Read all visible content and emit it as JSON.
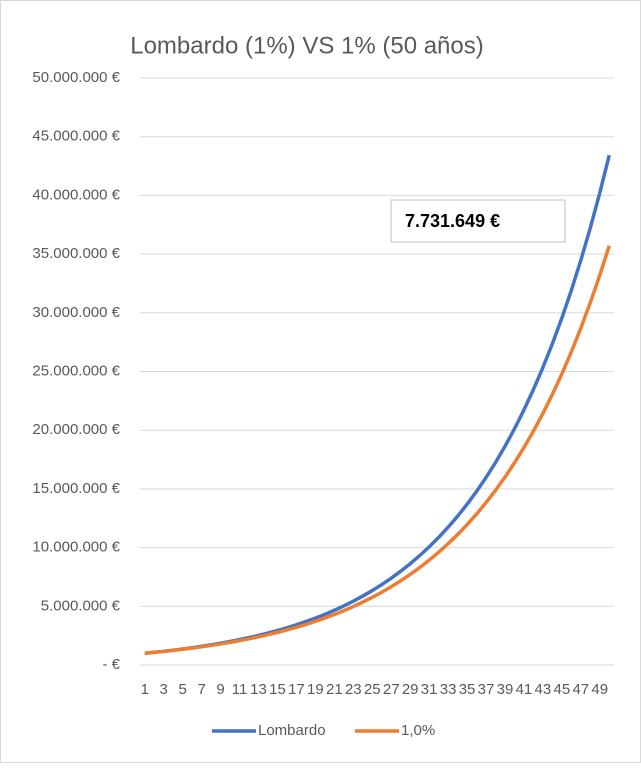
{
  "chart_data": {
    "type": "line",
    "title": "Lombardo (1%) VS 1% (50 años)",
    "annotation": "7.731.649 €",
    "categories": [
      "1",
      null,
      "3",
      null,
      "5",
      null,
      "7",
      null,
      "9",
      null,
      "11",
      null,
      "13",
      null,
      "15",
      null,
      "17",
      null,
      "19",
      null,
      "21",
      null,
      "23",
      null,
      "25",
      null,
      "27",
      null,
      "29",
      null,
      "31",
      null,
      "33",
      null,
      "35",
      null,
      "37",
      null,
      "39",
      null,
      "41",
      null,
      "43",
      null,
      "45",
      null,
      "47",
      null,
      "49",
      null
    ],
    "ylim": [
      0,
      50000000
    ],
    "yticks": [
      {
        "value": 0,
        "label": "-   €"
      },
      {
        "value": 5000000,
        "label": "5.000.000 €"
      },
      {
        "value": 10000000,
        "label": "10.000.000 €"
      },
      {
        "value": 15000000,
        "label": "15.000.000 €"
      },
      {
        "value": 20000000,
        "label": "20.000.000 €"
      },
      {
        "value": 25000000,
        "label": "25.000.000 €"
      },
      {
        "value": 30000000,
        "label": "30.000.000 €"
      },
      {
        "value": 35000000,
        "label": "35.000.000 €"
      },
      {
        "value": 40000000,
        "label": "40.000.000 €"
      },
      {
        "value": 45000000,
        "label": "45.000.000 €"
      },
      {
        "value": 50000000,
        "label": "50.000.000 €"
      }
    ],
    "grid": true,
    "legend": "bottom",
    "series": [
      {
        "name": "Lombardo",
        "color": "#4472c4",
        "values": [
          1000000,
          1080000,
          1166000,
          1260000,
          1360000,
          1469000,
          1587000,
          1714000,
          1851000,
          1999000,
          2159000,
          2332000,
          2518000,
          2720000,
          2937000,
          3172000,
          3426000,
          3700000,
          3996000,
          4316000,
          4661000,
          5034000,
          5437000,
          5872000,
          6341000,
          6849000,
          7396000,
          7988000,
          8627000,
          9317000,
          10063000,
          10868000,
          11737000,
          12676000,
          13690000,
          14785000,
          15968000,
          17246000,
          18625000,
          20115000,
          21725000,
          23463000,
          25340000,
          27367000,
          29556000,
          31920000,
          34474000,
          37232000,
          40211000,
          43427000
        ]
      },
      {
        "name": "1,0%",
        "color": "#ed7d31",
        "values": [
          1000000,
          1076000,
          1157000,
          1245000,
          1339000,
          1440000,
          1549000,
          1667000,
          1793000,
          1928000,
          2074000,
          2231000,
          2400000,
          2582000,
          2778000,
          2988000,
          3214000,
          3457000,
          3719000,
          4000000,
          4303000,
          4629000,
          4979000,
          5356000,
          5762000,
          6198000,
          6667000,
          7172000,
          7715000,
          8299000,
          8927000,
          9603000,
          10329000,
          11111000,
          11952000,
          12857000,
          13831000,
          14877000,
          16004000,
          17215000,
          18518000,
          19920000,
          21428000,
          23050000,
          24795000,
          26672000,
          28691000,
          30863000,
          33199000,
          35712000
        ]
      }
    ]
  }
}
